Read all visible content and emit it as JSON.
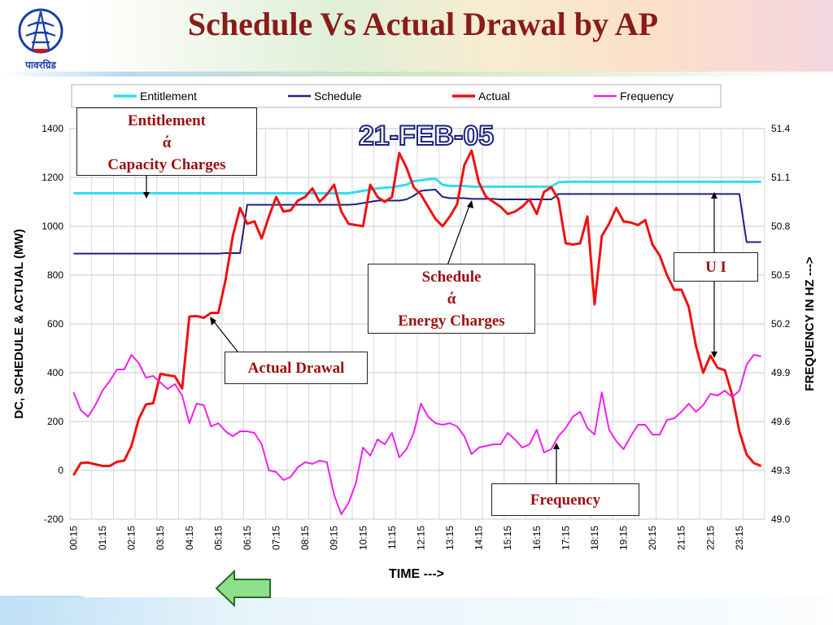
{
  "title": "Schedule Vs Actual Drawal by AP",
  "logo_caption": "पावरग्रिड",
  "date_stamp": "21-FEB-05",
  "colors": {
    "entitlement": "#33ddee",
    "schedule": "#1a237e",
    "actual": "#ee1111",
    "frequency": "#ee22ee",
    "title": "#8b1a1a",
    "callout_text": "#9b1010"
  },
  "chart_data": {
    "type": "line",
    "xlabel": "TIME --->",
    "ylabel": "DC, SCHEDULE & ACTUAL (MW)",
    "y2label": "FREQUENCY IN HZ  --->",
    "ylim": [
      -200,
      1400
    ],
    "y_ticks": [
      "-200",
      "0",
      "200",
      "400",
      "600",
      "800",
      "1000",
      "1200",
      "1400"
    ],
    "y2lim": [
      49.0,
      51.4
    ],
    "y2_ticks": [
      "49.0",
      "49.3",
      "49.6",
      "49.9",
      "50.2",
      "50.5",
      "50.8",
      "51.1",
      "51.4"
    ],
    "x_ticks": [
      "00:15",
      "01:15",
      "02:15",
      "03:15",
      "04:15",
      "05:15",
      "06:15",
      "07:15",
      "08:15",
      "09:15",
      "10:15",
      "11:15",
      "12:15",
      "13:15",
      "14:15",
      "15:15",
      "16:15",
      "17:15",
      "18:15",
      "19:15",
      "20:15",
      "21:15",
      "22:15",
      "23:15"
    ],
    "grid": true,
    "legend_position": "top",
    "series": [
      {
        "name": "Entitlement",
        "axis": "left",
        "values": [
          1135,
          1135,
          1135,
          1135,
          1135,
          1135,
          1135,
          1135,
          1135,
          1135,
          1135,
          1135,
          1135,
          1135,
          1135,
          1135,
          1135,
          1135,
          1135,
          1135,
          1135,
          1135,
          1135,
          1135,
          1135,
          1135,
          1135,
          1135,
          1135,
          1135,
          1135,
          1135,
          1135,
          1135,
          1135,
          1135,
          1135,
          1135,
          1135,
          1140,
          1145,
          1150,
          1155,
          1158,
          1160,
          1165,
          1170,
          1185,
          1188,
          1192,
          1195,
          1170,
          1165,
          1165,
          1165,
          1162,
          1162,
          1162,
          1162,
          1162,
          1162,
          1162,
          1162,
          1162,
          1162,
          1162,
          1162,
          1180,
          1182,
          1182,
          1182,
          1182,
          1182,
          1182,
          1182,
          1182,
          1182,
          1182,
          1182,
          1182,
          1182,
          1182,
          1182,
          1182,
          1182,
          1182,
          1182,
          1182,
          1182,
          1182,
          1182,
          1182,
          1182,
          1182,
          1182,
          1182
        ]
      },
      {
        "name": "Schedule",
        "axis": "left",
        "values": [
          888,
          888,
          888,
          888,
          888,
          888,
          888,
          888,
          888,
          888,
          888,
          888,
          888,
          888,
          888,
          888,
          888,
          888,
          888,
          888,
          888,
          890,
          890,
          890,
          1088,
          1088,
          1088,
          1088,
          1088,
          1088,
          1088,
          1088,
          1088,
          1088,
          1088,
          1088,
          1088,
          1088,
          1088,
          1090,
          1095,
          1100,
          1105,
          1105,
          1105,
          1105,
          1110,
          1125,
          1145,
          1148,
          1150,
          1120,
          1115,
          1115,
          1115,
          1112,
          1112,
          1112,
          1112,
          1110,
          1110,
          1110,
          1110,
          1110,
          1110,
          1110,
          1110,
          1132,
          1132,
          1132,
          1132,
          1132,
          1132,
          1132,
          1132,
          1132,
          1132,
          1132,
          1132,
          1132,
          1132,
          1132,
          1132,
          1132,
          1132,
          1132,
          1132,
          1132,
          1132,
          1132,
          1132,
          1132,
          1132,
          935,
          935,
          935
        ]
      },
      {
        "name": "Actual",
        "axis": "left",
        "values": [
          -20,
          30,
          32,
          25,
          18,
          18,
          35,
          40,
          100,
          210,
          270,
          275,
          395,
          390,
          385,
          335,
          630,
          632,
          625,
          645,
          645,
          780,
          960,
          1075,
          1010,
          1020,
          950,
          1040,
          1120,
          1060,
          1065,
          1105,
          1120,
          1155,
          1100,
          1130,
          1170,
          1060,
          1010,
          1005,
          1000,
          1170,
          1120,
          1100,
          1120,
          1300,
          1240,
          1160,
          1130,
          1080,
          1030,
          1000,
          1040,
          1090,
          1250,
          1310,
          1180,
          1120,
          1100,
          1080,
          1050,
          1060,
          1080,
          1110,
          1050,
          1140,
          1160,
          1110,
          930,
          925,
          930,
          1040,
          680,
          960,
          1010,
          1075,
          1020,
          1015,
          1005,
          1025,
          925,
          880,
          800,
          740,
          740,
          670,
          510,
          400,
          470,
          420,
          410,
          310,
          160,
          65,
          30,
          18
        ]
      },
      {
        "name": "Frequency",
        "axis": "right",
        "values": [
          49.78,
          49.67,
          49.63,
          49.7,
          49.79,
          49.85,
          49.92,
          49.92,
          50.01,
          49.96,
          49.87,
          49.88,
          49.84,
          49.8,
          49.83,
          49.76,
          49.59,
          49.71,
          49.7,
          49.57,
          49.59,
          49.54,
          49.51,
          49.54,
          49.54,
          49.53,
          49.46,
          49.3,
          49.29,
          49.24,
          49.26,
          49.32,
          49.35,
          49.34,
          49.36,
          49.35,
          49.15,
          49.03,
          49.1,
          49.22,
          49.44,
          49.39,
          49.49,
          49.46,
          49.53,
          49.38,
          49.43,
          49.53,
          49.71,
          49.63,
          49.59,
          49.58,
          49.59,
          49.57,
          49.51,
          49.4,
          49.44,
          49.45,
          49.46,
          49.46,
          49.53,
          49.49,
          49.44,
          49.46,
          49.55,
          49.41,
          49.43,
          49.51,
          49.56,
          49.63,
          49.66,
          49.56,
          49.52,
          49.78,
          49.55,
          49.48,
          49.43,
          49.51,
          49.58,
          49.58,
          49.52,
          49.52,
          49.61,
          49.62,
          49.66,
          49.71,
          49.66,
          49.7,
          49.77,
          49.76,
          49.79,
          49.75,
          49.79,
          49.95,
          50.01,
          50.0
        ]
      }
    ]
  },
  "callouts": {
    "entitlement": [
      "Entitlement",
      "ά",
      "Capacity Charges"
    ],
    "schedule": [
      "Schedule",
      "ά",
      "Energy Charges"
    ],
    "actual": "Actual Drawal",
    "ui": "U I",
    "frequency": "Frequency"
  }
}
